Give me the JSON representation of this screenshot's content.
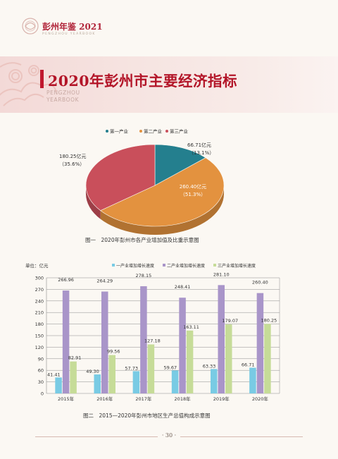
{
  "header": {
    "book_title": "彭州年鉴 2021",
    "book_subtitle": "PENGZHOU YEARBOOK"
  },
  "section": {
    "title": "2020年彭州市主要经济指标",
    "title_en_1": "PENGZHOU",
    "title_en_2": "YEARBOOK"
  },
  "chart_data": [
    {
      "type": "pie",
      "title": "图一　2020年彭州市各产业增加值及比重示意图",
      "legend": [
        "第一产业",
        "第二产业",
        "第三产业"
      ],
      "legend_position": "top",
      "slices": [
        {
          "name": "第一产业",
          "value": 66.71,
          "value_label": "66.71亿元",
          "pct_label": "（13.1%）",
          "color": "#247f8e"
        },
        {
          "name": "第二产业",
          "value": 260.4,
          "value_label": "260.40亿元",
          "pct_label": "（51.3%）",
          "color": "#e3923f"
        },
        {
          "name": "第三产业",
          "value": 180.25,
          "value_label": "180.25亿元",
          "pct_label": "（35.6%）",
          "color": "#c94f5b"
        }
      ]
    },
    {
      "type": "bar",
      "title": "图二　2015—2020年彭州市地区生产总值构成示意图",
      "unit_label": "单位：亿元",
      "categories": [
        "2015年",
        "2016年",
        "2017年",
        "2018年",
        "2019年",
        "2020年"
      ],
      "series": [
        {
          "name": "一产业增加增长速度",
          "color": "#79cbe4",
          "values": [
            41.41,
            49.3,
            57.73,
            59.67,
            63.33,
            66.71
          ],
          "labels": [
            "41.41",
            "49.30",
            "57.73",
            "59.67",
            "63.33",
            "66.71"
          ]
        },
        {
          "name": "二产业增加增长速度",
          "color": "#a995c9",
          "values": [
            266.96,
            264.29,
            278.15,
            248.41,
            281.1,
            260.4
          ],
          "labels": [
            "266.96",
            "264.29",
            "278.15",
            "248.41",
            "281.10",
            "260.40"
          ]
        },
        {
          "name": "三产业增加增长速度",
          "color": "#c6dc98",
          "values": [
            82.91,
            99.56,
            127.18,
            163.11,
            179.07,
            180.25
          ],
          "labels": [
            "82.91",
            "99.56",
            "127.18",
            "163.11",
            "179.07",
            "180.25"
          ]
        }
      ],
      "yticks": [
        "0",
        "30",
        "60",
        "90",
        "120",
        "150",
        "180",
        "210",
        "240",
        "270",
        "300"
      ],
      "ylim": [
        0,
        300
      ],
      "grid": true,
      "legend_position": "top"
    }
  ],
  "footer": {
    "page": "· 30 ·"
  }
}
